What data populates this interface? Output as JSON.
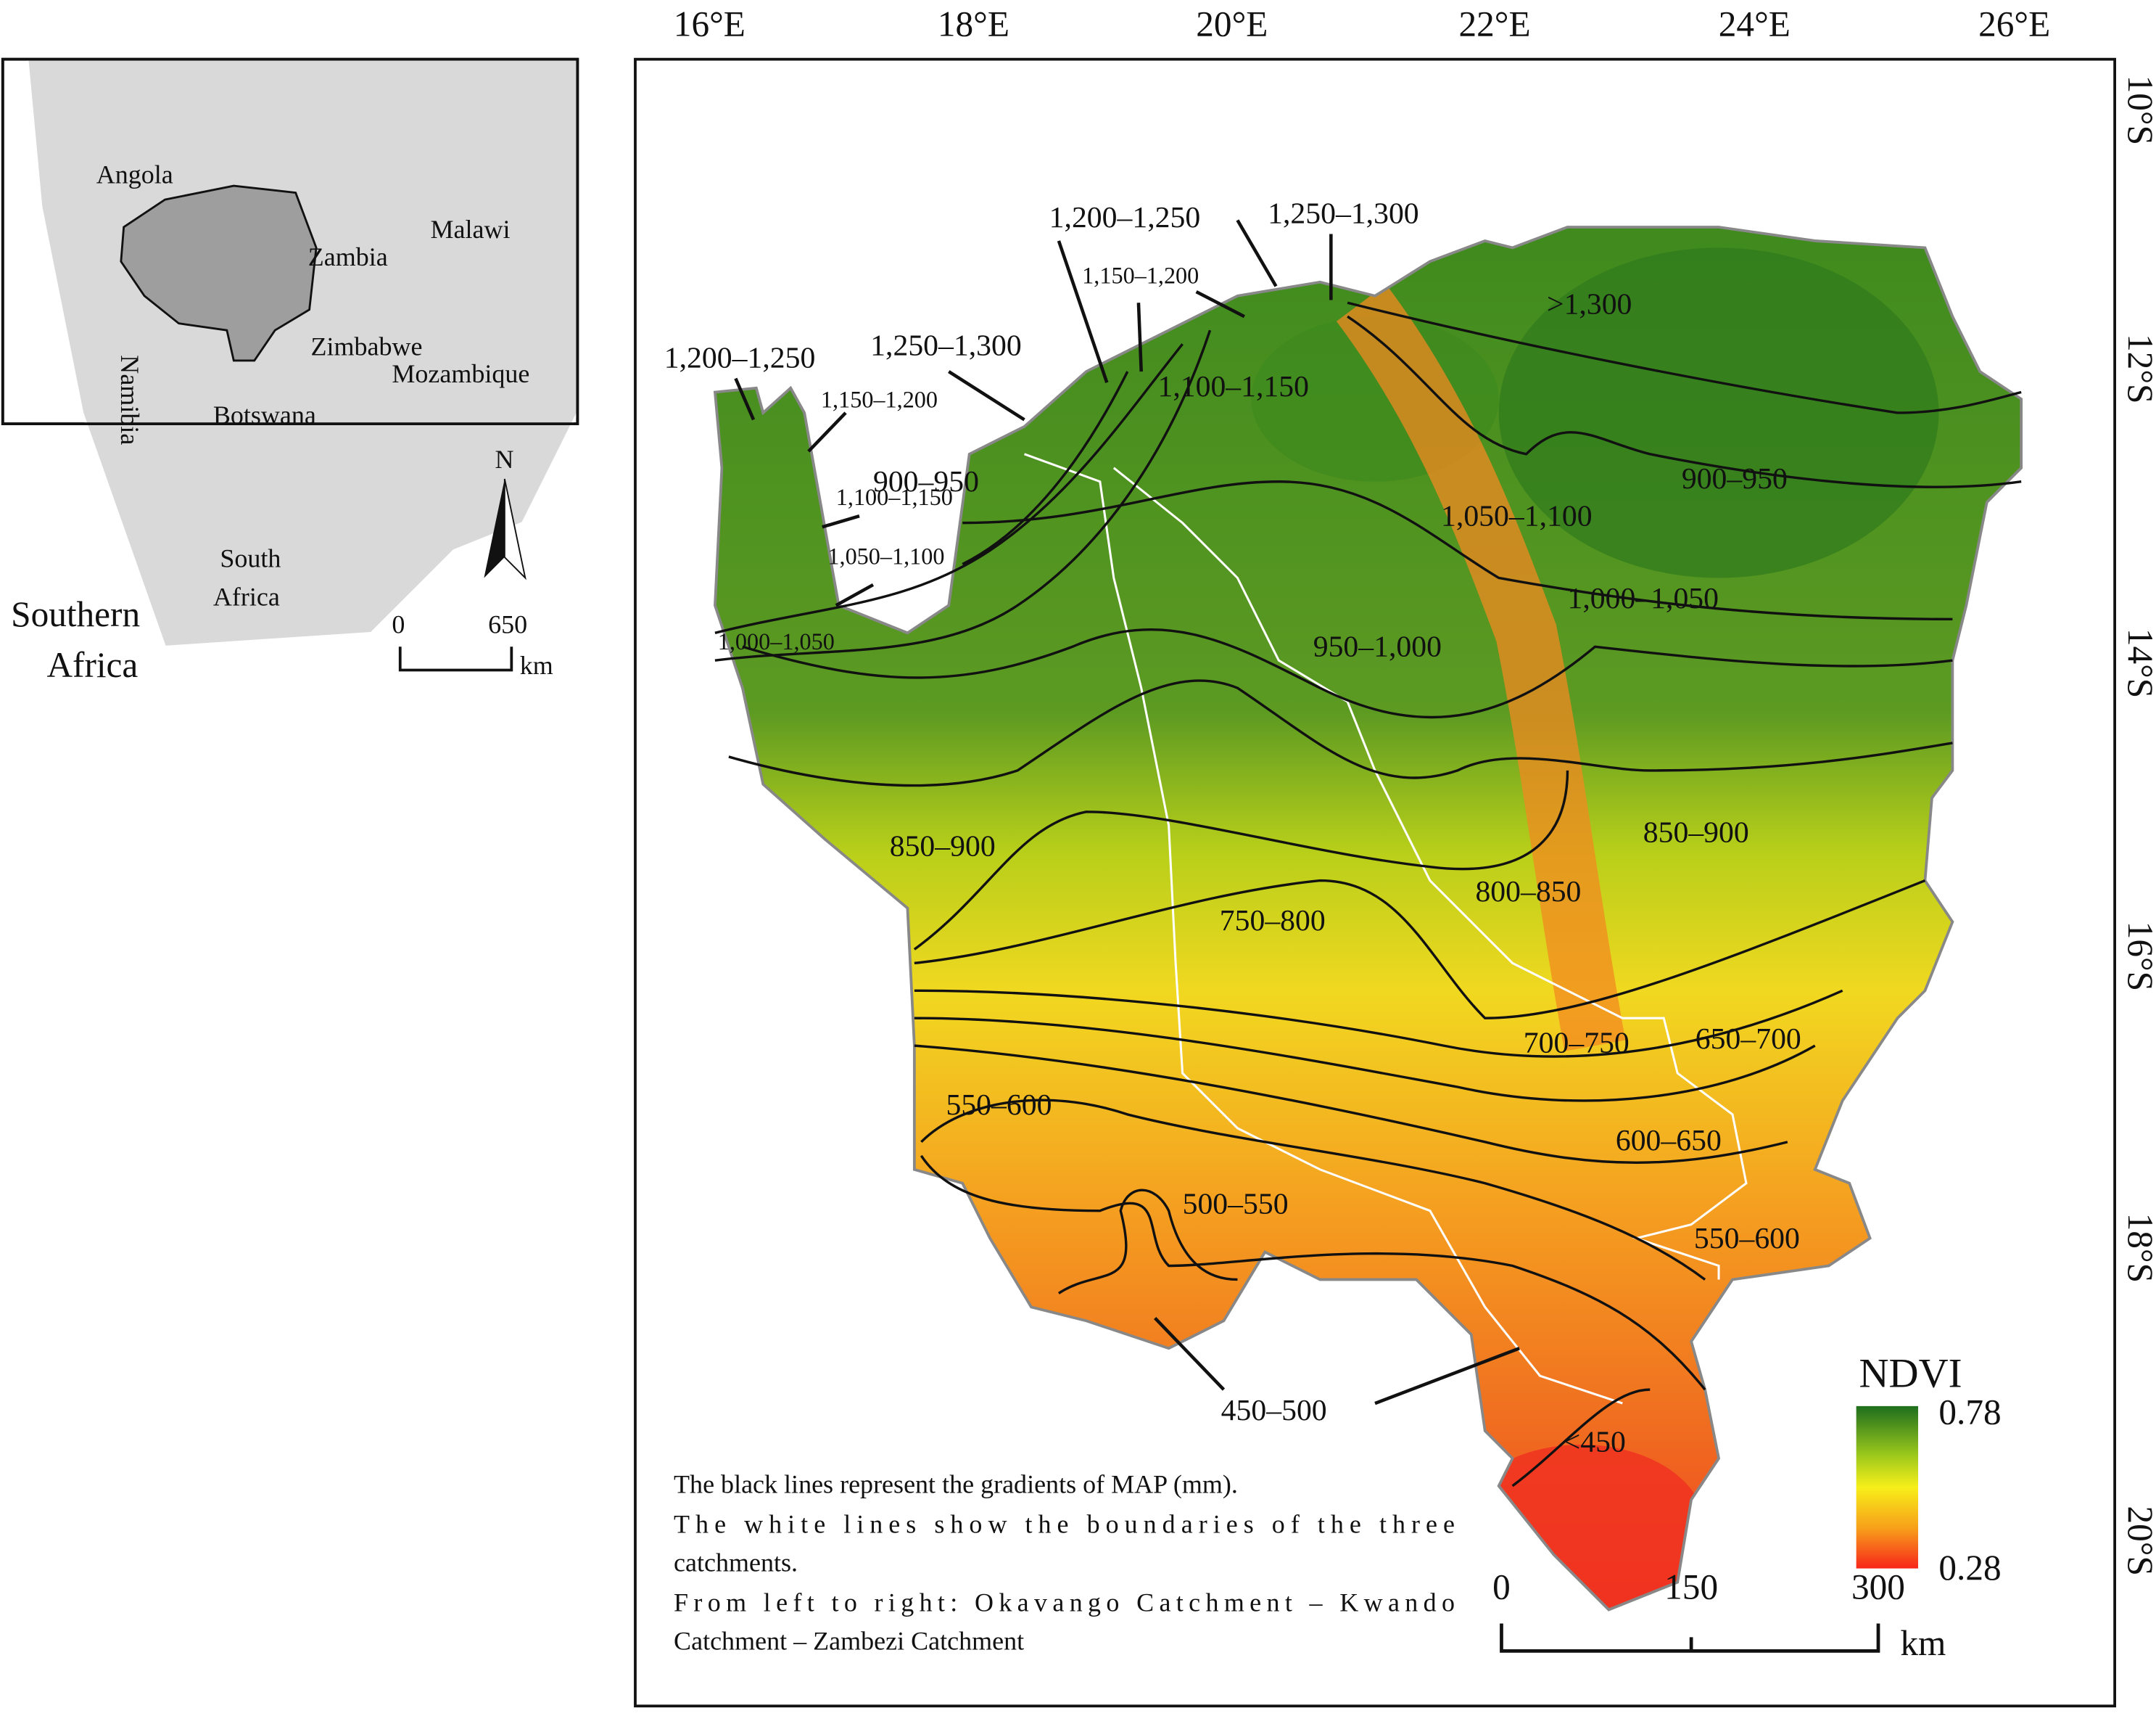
{
  "inset": {
    "countries": [
      "Angola",
      "Zambia",
      "Malawi",
      "Zimbabwe",
      "Namibia",
      "Botswana",
      "Mozambique"
    ],
    "south_africa": [
      "South",
      "Africa"
    ],
    "region": [
      "Southern",
      "Africa"
    ],
    "north": "N",
    "scale": {
      "ticks": [
        "0",
        "650"
      ],
      "unit": "km"
    }
  },
  "map": {
    "lon_labels": [
      "16°E",
      "18°E",
      "20°E",
      "22°E",
      "24°E",
      "26°E"
    ],
    "lat_labels": [
      "10°S",
      "12°S",
      "14°S",
      "16°S",
      "18°S",
      "20°S"
    ],
    "contour_labels": [
      "1,200–1,250",
      "1,250–1,300",
      "1,200–1,250",
      "1,250–1,300",
      "1,150–1,200",
      "1,150–1,200",
      "1,100–1,150",
      "1,050–1,100",
      "1,000–1,050",
      ">1,300",
      "1,100–1,150",
      "1,050–1,100",
      "1,000–1,050",
      "950–1,000",
      "900–950",
      "900–950",
      "850–900",
      "850–900",
      "800–850",
      "750–800",
      "700–750",
      "650–700",
      "550–600",
      "600–650",
      "500–550",
      "550–600",
      "450–500",
      "<450"
    ],
    "legend": {
      "title": "NDVI",
      "max": "0.78",
      "min": "0.28"
    },
    "scale": {
      "ticks": [
        "0",
        "150",
        "300"
      ],
      "unit": "km"
    },
    "caption": [
      "The black lines represent the gradients of MAP (mm).",
      "The white lines show the boundaries of the three",
      "catchments.",
      "From left to right: Okavango Catchment – Kwando",
      "Catchment – Zambezi Catchment"
    ]
  }
}
